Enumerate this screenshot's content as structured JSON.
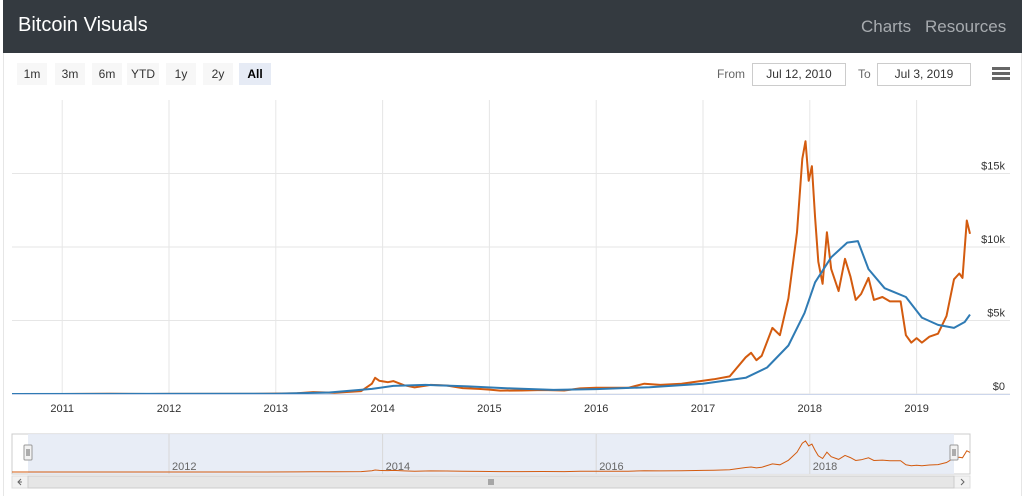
{
  "header": {
    "brand": "Bitcoin Visuals",
    "nav": [
      {
        "label": "Charts"
      },
      {
        "label": "Resources"
      }
    ]
  },
  "range_selector": {
    "buttons": [
      "1m",
      "3m",
      "6m",
      "YTD",
      "1y",
      "2y",
      "All"
    ],
    "active": "All",
    "from_label": "From",
    "from_value": "Jul 12, 2010",
    "to_label": "To",
    "to_value": "Jul 3, 2019"
  },
  "icons": {
    "menu": "hamburger-menu-icon"
  },
  "colors": {
    "price": "#d35b0f",
    "average": "#2f7bb4",
    "navigator_fill": "#e6ebf5",
    "navbar": "#343a40"
  },
  "chart_data": {
    "type": "line",
    "x_label_ticks": [
      "2011",
      "2012",
      "2013",
      "2014",
      "2015",
      "2016",
      "2017",
      "2018",
      "2019"
    ],
    "y_tick_labels": [
      "$0",
      "$5k",
      "$10k",
      "$15k"
    ],
    "y_ticks": [
      0,
      5000,
      10000,
      15000
    ],
    "xlim": [
      2010.53,
      2019.5
    ],
    "ylim": [
      0,
      20000
    ],
    "navigator_ticks": [
      "2012",
      "2014",
      "2016",
      "2018"
    ],
    "series": [
      {
        "key": "price",
        "points": [
          [
            2010.53,
            0.1
          ],
          [
            2011.0,
            0.3
          ],
          [
            2011.45,
            20
          ],
          [
            2011.8,
            3
          ],
          [
            2012.0,
            5
          ],
          [
            2012.5,
            7
          ],
          [
            2012.9,
            13
          ],
          [
            2013.2,
            50
          ],
          [
            2013.35,
            130
          ],
          [
            2013.55,
            90
          ],
          [
            2013.8,
            200
          ],
          [
            2013.9,
            700
          ],
          [
            2013.93,
            1100
          ],
          [
            2013.97,
            900
          ],
          [
            2014.05,
            800
          ],
          [
            2014.1,
            880
          ],
          [
            2014.2,
            600
          ],
          [
            2014.3,
            450
          ],
          [
            2014.45,
            620
          ],
          [
            2014.6,
            580
          ],
          [
            2014.75,
            400
          ],
          [
            2014.9,
            350
          ],
          [
            2015.0,
            300
          ],
          [
            2015.1,
            230
          ],
          [
            2015.3,
            240
          ],
          [
            2015.5,
            270
          ],
          [
            2015.7,
            240
          ],
          [
            2015.85,
            380
          ],
          [
            2016.0,
            430
          ],
          [
            2016.3,
            420
          ],
          [
            2016.45,
            700
          ],
          [
            2016.6,
            620
          ],
          [
            2016.8,
            700
          ],
          [
            2017.0,
            900
          ],
          [
            2017.1,
            1000
          ],
          [
            2017.25,
            1200
          ],
          [
            2017.4,
            2500
          ],
          [
            2017.45,
            2800
          ],
          [
            2017.5,
            2300
          ],
          [
            2017.55,
            2600
          ],
          [
            2017.65,
            4500
          ],
          [
            2017.72,
            4000
          ],
          [
            2017.8,
            6500
          ],
          [
            2017.88,
            11000
          ],
          [
            2017.93,
            16000
          ],
          [
            2017.96,
            17200
          ],
          [
            2017.99,
            14500
          ],
          [
            2018.02,
            15500
          ],
          [
            2018.05,
            12000
          ],
          [
            2018.08,
            9000
          ],
          [
            2018.12,
            7500
          ],
          [
            2018.16,
            11000
          ],
          [
            2018.2,
            8500
          ],
          [
            2018.27,
            7000
          ],
          [
            2018.33,
            9200
          ],
          [
            2018.38,
            8000
          ],
          [
            2018.43,
            6400
          ],
          [
            2018.48,
            6800
          ],
          [
            2018.55,
            7900
          ],
          [
            2018.6,
            6400
          ],
          [
            2018.68,
            6600
          ],
          [
            2018.75,
            6300
          ],
          [
            2018.85,
            6300
          ],
          [
            2018.9,
            4000
          ],
          [
            2018.95,
            3500
          ],
          [
            2019.0,
            3800
          ],
          [
            2019.05,
            3500
          ],
          [
            2019.12,
            3900
          ],
          [
            2019.2,
            4100
          ],
          [
            2019.28,
            5300
          ],
          [
            2019.35,
            7800
          ],
          [
            2019.4,
            8200
          ],
          [
            2019.43,
            7900
          ],
          [
            2019.47,
            11800
          ],
          [
            2019.5,
            10900
          ]
        ]
      },
      {
        "key": "average",
        "points": [
          [
            2010.53,
            0.2
          ],
          [
            2013.0,
            20
          ],
          [
            2013.5,
            100
          ],
          [
            2013.9,
            350
          ],
          [
            2014.1,
            550
          ],
          [
            2014.4,
            620
          ],
          [
            2014.8,
            520
          ],
          [
            2015.2,
            380
          ],
          [
            2015.6,
            280
          ],
          [
            2016.0,
            330
          ],
          [
            2016.5,
            460
          ],
          [
            2017.0,
            700
          ],
          [
            2017.4,
            1100
          ],
          [
            2017.6,
            1800
          ],
          [
            2017.8,
            3300
          ],
          [
            2017.95,
            5500
          ],
          [
            2018.05,
            7600
          ],
          [
            2018.2,
            9300
          ],
          [
            2018.35,
            10300
          ],
          [
            2018.45,
            10400
          ],
          [
            2018.55,
            8500
          ],
          [
            2018.7,
            7200
          ],
          [
            2018.9,
            6600
          ],
          [
            2019.05,
            5200
          ],
          [
            2019.2,
            4700
          ],
          [
            2019.35,
            4500
          ],
          [
            2019.45,
            4900
          ],
          [
            2019.5,
            5400
          ]
        ]
      }
    ]
  }
}
